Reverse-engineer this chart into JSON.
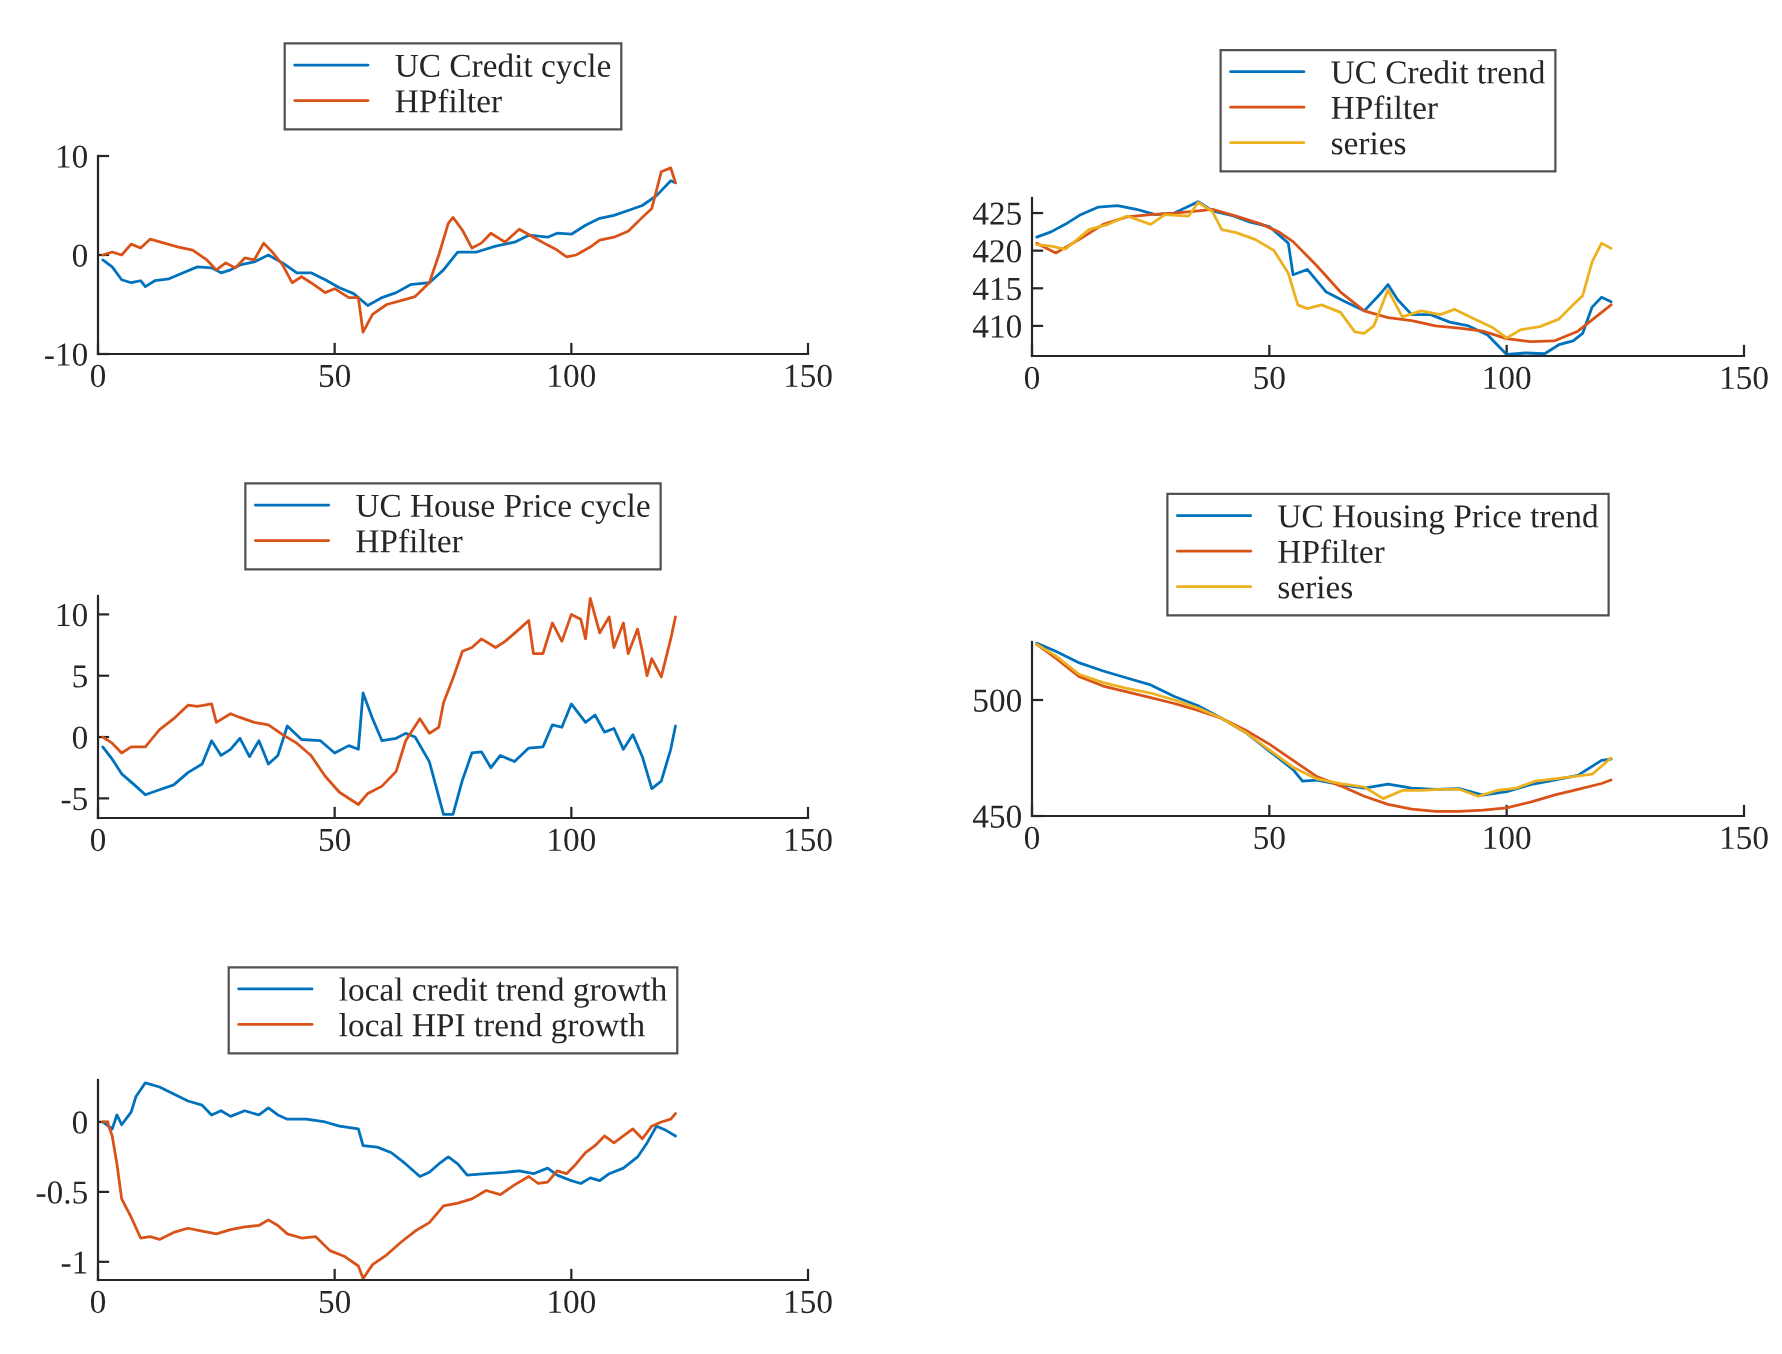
{
  "chart_data": [
    {
      "type": "line",
      "xlim": [
        0,
        150
      ],
      "xticks": [
        0,
        50,
        100,
        150
      ],
      "ylim": [
        -10,
        10
      ],
      "yticks": [
        -10,
        0,
        10
      ],
      "legend": "top",
      "grid": false,
      "series": [
        {
          "name": "UC Credit cycle",
          "color": "#0072bd",
          "x": [
            1,
            3,
            5,
            7,
            9,
            10,
            12,
            15,
            18,
            21,
            24,
            26,
            28,
            30,
            33,
            36,
            39,
            42,
            45,
            48,
            51,
            54,
            57,
            60,
            63,
            66,
            70,
            73,
            76,
            80,
            84,
            88,
            91,
            95,
            97,
            100,
            103,
            106,
            109,
            112,
            115,
            118,
            121,
            122
          ],
          "values": [
            -0.5,
            -1.2,
            -2.5,
            -2.8,
            -2.6,
            -3.2,
            -2.6,
            -2.4,
            -1.8,
            -1.2,
            -1.3,
            -1.8,
            -1.5,
            -1,
            -0.7,
            0,
            -0.8,
            -1.8,
            -1.8,
            -2.5,
            -3.3,
            -3.9,
            -5.1,
            -4.3,
            -3.8,
            -3,
            -2.8,
            -1.5,
            0.3,
            0.3,
            0.9,
            1.3,
            2,
            1.8,
            2.2,
            2.1,
            3,
            3.7,
            4,
            4.5,
            5,
            6,
            7.5,
            7.3
          ]
        },
        {
          "name": "HPfilter",
          "color": "#d95319",
          "x": [
            1,
            3,
            5,
            7,
            9,
            11,
            14,
            17,
            20,
            23,
            25,
            27,
            29,
            31,
            33,
            35,
            37,
            39,
            41,
            43,
            45,
            48,
            50,
            53,
            55,
            56,
            58,
            61,
            64,
            67,
            70,
            72,
            74,
            75,
            77,
            79,
            81,
            83,
            86,
            89,
            92,
            95,
            97,
            99,
            101,
            104,
            106,
            109,
            112,
            115,
            117,
            119,
            121,
            122
          ],
          "values": [
            0,
            0.3,
            0,
            1.1,
            0.7,
            1.6,
            1.2,
            0.8,
            0.5,
            -0.5,
            -1.5,
            -0.8,
            -1.3,
            -0.3,
            -0.5,
            1.2,
            0.2,
            -1,
            -2.8,
            -2.2,
            -2.8,
            -3.8,
            -3.4,
            -4.3,
            -4.3,
            -7.8,
            -6,
            -5,
            -4.6,
            -4.2,
            -2.8,
            0,
            3.2,
            3.8,
            2.5,
            0.7,
            1.2,
            2.2,
            1.3,
            2.6,
            1.8,
            1,
            0.5,
            -0.2,
            0,
            0.8,
            1.5,
            1.8,
            2.4,
            3.8,
            4.7,
            8.4,
            8.8,
            7.3
          ]
        }
      ]
    },
    {
      "type": "line",
      "xlim": [
        0,
        150
      ],
      "xticks": [
        0,
        50,
        100,
        150
      ],
      "ylim": [
        406,
        427
      ],
      "yticks": [
        410,
        415,
        420,
        425
      ],
      "legend": "top",
      "grid": false,
      "series": [
        {
          "name": "UC Credit trend",
          "color": "#0072bd",
          "x": [
            1,
            4,
            7,
            10,
            14,
            18,
            22,
            26,
            30,
            35,
            38,
            42,
            46,
            50,
            54,
            55,
            58,
            62,
            66,
            70,
            73,
            75,
            77,
            80,
            84,
            88,
            92,
            96,
            100,
            104,
            108,
            111,
            114,
            116,
            118,
            120,
            122
          ],
          "values": [
            421.8,
            422.5,
            423.5,
            424.7,
            425.8,
            426,
            425.5,
            424.8,
            425,
            426.5,
            425.3,
            424.7,
            423.8,
            423.2,
            421,
            416.8,
            417.5,
            414.5,
            413.2,
            412,
            414,
            415.5,
            413.5,
            411.5,
            411.5,
            410.5,
            410,
            408.8,
            406.2,
            406.4,
            406.3,
            407.5,
            408,
            409,
            412.5,
            413.8,
            413.2
          ]
        },
        {
          "name": "HPfilter",
          "color": "#d95319",
          "x": [
            1,
            5,
            10,
            15,
            20,
            25,
            30,
            35,
            38,
            43,
            48,
            52,
            55,
            60,
            65,
            70,
            75,
            80,
            85,
            90,
            95,
            100,
            105,
            110,
            115,
            120,
            122
          ],
          "values": [
            421,
            419.7,
            421.5,
            423.5,
            424.5,
            424.8,
            425,
            425.3,
            425.5,
            424.6,
            423.6,
            422.5,
            421.2,
            418,
            414.5,
            412,
            411.1,
            410.7,
            410,
            409.7,
            409.3,
            408.3,
            407.9,
            408,
            409.3,
            411.8,
            412.8
          ]
        },
        {
          "name": "series",
          "color": "#edb120",
          "x": [
            1,
            4,
            7,
            9,
            12,
            16,
            20,
            25,
            28,
            33,
            35,
            38,
            40,
            43,
            47,
            51,
            54,
            56,
            58,
            61,
            65,
            68,
            70,
            72,
            75,
            78,
            82,
            86,
            89,
            93,
            97,
            100,
            103,
            107,
            111,
            114,
            116,
            118,
            120,
            122
          ],
          "values": [
            420.8,
            420.6,
            420.2,
            421.2,
            422.8,
            423.5,
            424.6,
            423.5,
            424.8,
            424.6,
            426.4,
            425.2,
            422.8,
            422.4,
            421.5,
            420,
            417,
            412.8,
            412.3,
            412.8,
            411.8,
            409.2,
            409,
            410,
            414.8,
            411.2,
            412,
            411.5,
            412.2,
            411,
            409.8,
            408.4,
            409.5,
            409.9,
            410.9,
            412.8,
            414,
            418.5,
            421,
            420.3
          ]
        }
      ]
    },
    {
      "type": "line",
      "xlim": [
        0,
        150
      ],
      "xticks": [
        0,
        50,
        100,
        150
      ],
      "ylim": [
        -6.6,
        11.5
      ],
      "yticks": [
        -5,
        0,
        5,
        10
      ],
      "legend": "top",
      "grid": false,
      "series": [
        {
          "name": "UC House Price cycle",
          "color": "#0072bd",
          "x": [
            1,
            3,
            5,
            8,
            10,
            13,
            16,
            19,
            22,
            24,
            26,
            28,
            30,
            32,
            34,
            36,
            38,
            40,
            43,
            47,
            50,
            53,
            55,
            56,
            58,
            60,
            63,
            65,
            67,
            70,
            73,
            75,
            77,
            79,
            81,
            83,
            85,
            88,
            91,
            94,
            96,
            98,
            100,
            103,
            105,
            107,
            109,
            111,
            113,
            115,
            117,
            119,
            121,
            122
          ],
          "values": [
            -0.8,
            -1.8,
            -3,
            -4,
            -4.7,
            -4.3,
            -3.9,
            -2.9,
            -2.2,
            -0.3,
            -1.5,
            -1,
            -0.1,
            -1.6,
            -0.3,
            -2.2,
            -1.5,
            0.9,
            -0.2,
            -0.3,
            -1.3,
            -0.7,
            -1,
            3.6,
            1.5,
            -0.3,
            -0.1,
            0.3,
            0,
            -2,
            -6.3,
            -6.3,
            -3.5,
            -1.3,
            -1.2,
            -2.5,
            -1.5,
            -2,
            -0.9,
            -0.8,
            1,
            0.8,
            2.7,
            1.2,
            1.8,
            0.4,
            0.7,
            -1,
            0.2,
            -1.6,
            -4.2,
            -3.6,
            -1,
            0.9
          ]
        },
        {
          "name": "HPfilter",
          "color": "#d95319",
          "x": [
            1,
            3,
            5,
            7,
            10,
            13,
            16,
            19,
            21,
            24,
            25,
            28,
            30,
            33,
            36,
            39,
            42,
            45,
            48,
            51,
            55,
            57,
            60,
            63,
            65,
            68,
            70,
            72,
            73,
            75,
            77,
            79,
            81,
            84,
            86,
            89,
            91,
            92,
            94,
            96,
            98,
            100,
            102,
            103,
            104,
            106,
            108,
            109,
            111,
            112,
            114,
            115,
            116,
            117,
            119,
            121,
            122
          ],
          "values": [
            0,
            -0.5,
            -1.3,
            -0.8,
            -0.8,
            0.6,
            1.5,
            2.6,
            2.5,
            2.7,
            1.2,
            1.9,
            1.6,
            1.2,
            1,
            0.2,
            -0.5,
            -1.5,
            -3.2,
            -4.5,
            -5.5,
            -4.6,
            -4,
            -2.8,
            -0.3,
            1.5,
            0.3,
            0.8,
            2.8,
            4.8,
            7,
            7.3,
            8,
            7.3,
            7.8,
            8.8,
            9.5,
            6.8,
            6.8,
            9.3,
            7.8,
            10,
            9.6,
            8,
            11.3,
            8.5,
            9.8,
            7.3,
            9.3,
            6.8,
            8.8,
            7,
            5,
            6.4,
            4.9,
            8,
            9.8
          ]
        }
      ]
    },
    {
      "type": "line",
      "xlim": [
        0,
        150
      ],
      "xticks": [
        0,
        50,
        100,
        150
      ],
      "ylim": [
        450,
        525
      ],
      "yticks": [
        450,
        500
      ],
      "legend": "top",
      "grid": false,
      "series": [
        {
          "name": "UC Housing Price trend",
          "color": "#0072bd",
          "x": [
            1,
            5,
            10,
            15,
            20,
            25,
            30,
            35,
            40,
            45,
            50,
            55,
            57,
            60,
            65,
            70,
            75,
            80,
            85,
            90,
            95,
            100,
            105,
            110,
            115,
            120,
            122
          ],
          "values": [
            524.5,
            521,
            516,
            512.5,
            509.5,
            506.5,
            501.5,
            497.5,
            492,
            486,
            478,
            470,
            465,
            465.5,
            463.5,
            462,
            463.7,
            462,
            461.5,
            461.8,
            459,
            460.5,
            463.5,
            465.5,
            467.5,
            474,
            474.5
          ]
        },
        {
          "name": "HPfilter",
          "color": "#d95319",
          "x": [
            1,
            5,
            10,
            15,
            20,
            25,
            30,
            35,
            40,
            45,
            50,
            55,
            60,
            65,
            70,
            75,
            80,
            85,
            90,
            95,
            100,
            105,
            110,
            115,
            120,
            122
          ],
          "values": [
            524,
            518,
            510,
            506,
            503.5,
            501,
            498.5,
            495.5,
            492,
            487,
            481,
            474,
            467,
            463,
            458.5,
            455,
            453,
            452,
            452,
            452.5,
            453.5,
            456,
            459,
            461.5,
            464,
            465.5
          ]
        },
        {
          "name": "series",
          "color": "#edb120",
          "x": [
            1,
            5,
            10,
            15,
            20,
            25,
            30,
            35,
            40,
            45,
            50,
            55,
            60,
            65,
            70,
            74,
            78,
            82,
            86,
            90,
            94,
            98,
            102,
            106,
            110,
            114,
            118,
            122
          ],
          "values": [
            524,
            519,
            511,
            507.5,
            505,
            503,
            500,
            496.5,
            492,
            486,
            478.5,
            471,
            466,
            464,
            462.5,
            457.5,
            461,
            461,
            461.5,
            461.5,
            458.5,
            461,
            462,
            465,
            466,
            467,
            468,
            475
          ]
        }
      ]
    },
    {
      "type": "line",
      "xlim": [
        0,
        150
      ],
      "xticks": [
        0,
        50,
        100,
        150
      ],
      "ylim": [
        -1.13,
        0.3
      ],
      "yticks": [
        -1,
        -0.5,
        0
      ],
      "legend": "top",
      "grid": false,
      "series": [
        {
          "name": "local credit trend growth",
          "color": "#0072bd",
          "x": [
            1,
            3,
            4,
            5,
            7,
            8,
            10,
            13,
            16,
            19,
            22,
            24,
            26,
            28,
            31,
            34,
            36,
            38,
            40,
            44,
            48,
            51,
            55,
            56,
            59,
            62,
            65,
            68,
            70,
            72,
            74,
            76,
            78,
            82,
            86,
            89,
            92,
            95,
            97,
            100,
            102,
            104,
            106,
            108,
            111,
            114,
            116,
            118,
            120,
            122
          ],
          "values": [
            0,
            -0.05,
            0.05,
            -0.02,
            0.07,
            0.18,
            0.28,
            0.25,
            0.2,
            0.15,
            0.12,
            0.05,
            0.08,
            0.04,
            0.08,
            0.05,
            0.1,
            0.05,
            0.02,
            0.02,
            0,
            -0.03,
            -0.05,
            -0.17,
            -0.18,
            -0.22,
            -0.3,
            -0.39,
            -0.36,
            -0.3,
            -0.25,
            -0.3,
            -0.38,
            -0.37,
            -0.36,
            -0.35,
            -0.37,
            -0.33,
            -0.38,
            -0.42,
            -0.44,
            -0.4,
            -0.42,
            -0.37,
            -0.33,
            -0.25,
            -0.15,
            -0.03,
            -0.06,
            -0.1
          ]
        },
        {
          "name": "local HPI trend growth",
          "color": "#d95319",
          "x": [
            1,
            2,
            3,
            4,
            5,
            7,
            9,
            11,
            13,
            16,
            19,
            22,
            25,
            28,
            31,
            34,
            36,
            38,
            40,
            43,
            46,
            49,
            52,
            55,
            56,
            58,
            61,
            64,
            67,
            70,
            73,
            76,
            79,
            82,
            85,
            88,
            91,
            93,
            95,
            97,
            99,
            101,
            103,
            105,
            107,
            109,
            111,
            113,
            115,
            117,
            119,
            121,
            122
          ],
          "values": [
            0,
            0,
            -0.1,
            -0.3,
            -0.55,
            -0.68,
            -0.83,
            -0.82,
            -0.84,
            -0.79,
            -0.76,
            -0.78,
            -0.8,
            -0.77,
            -0.75,
            -0.74,
            -0.7,
            -0.74,
            -0.8,
            -0.83,
            -0.82,
            -0.92,
            -0.96,
            -1.03,
            -1.12,
            -1.02,
            -0.95,
            -0.86,
            -0.78,
            -0.72,
            -0.6,
            -0.58,
            -0.55,
            -0.49,
            -0.52,
            -0.45,
            -0.39,
            -0.44,
            -0.43,
            -0.35,
            -0.37,
            -0.3,
            -0.22,
            -0.17,
            -0.1,
            -0.15,
            -0.1,
            -0.05,
            -0.12,
            -0.03,
            0,
            0.02,
            0.06
          ]
        }
      ]
    }
  ]
}
